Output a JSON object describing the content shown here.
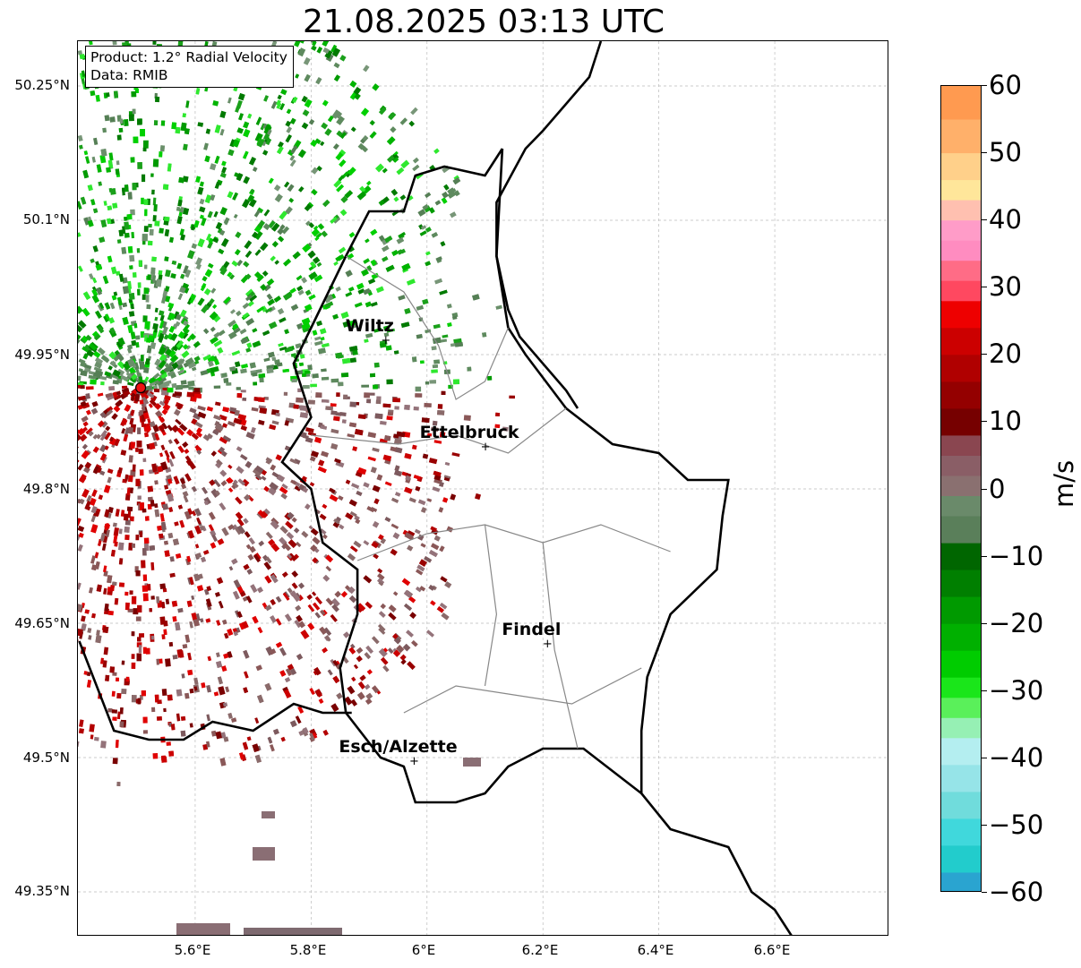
{
  "title": "21.08.2025 03:13 UTC",
  "info_box": {
    "line1": "Product: 1.2° Radial Velocity",
    "line2": "Data: RMIB"
  },
  "latitude_labels": [
    "50.25°N",
    "50.1°N",
    "49.95°N",
    "49.8°N",
    "49.65°N",
    "49.5°N",
    "49.35°N"
  ],
  "longitude_labels": [
    "5.6°E",
    "5.8°E",
    "6°E",
    "6.2°E",
    "6.4°E",
    "6.6°E"
  ],
  "places": [
    {
      "name": "Wiltz",
      "lat": 49.966,
      "lon": 5.932
    },
    {
      "name": "Ettelbruck",
      "lat": 49.847,
      "lon": 6.104
    },
    {
      "name": "Findel",
      "lat": 49.627,
      "lon": 6.211
    },
    {
      "name": "Esch/Alzette",
      "lat": 49.496,
      "lon": 5.981
    }
  ],
  "radar_site": {
    "label": "",
    "lat": 49.913,
    "lon": 5.506
  },
  "colorbar": {
    "label": "m/s",
    "ticks": [
      "60",
      "50",
      "40",
      "30",
      "20",
      "10",
      "0",
      "−10",
      "−20",
      "−30",
      "−40",
      "−50",
      "−60"
    ],
    "range": [
      -60,
      60
    ],
    "colors": {
      "positive_high": "#ff9a50",
      "positive_mid": "#ff6c86",
      "positive_strong": "#e00000",
      "near_zero_pos": "#8a5858",
      "near_zero_neg": "#5e8a5e",
      "negative_mid": "#00c000",
      "negative_low": "#40e0e0",
      "negative_min": "#1f7fc4"
    }
  },
  "map_extent": {
    "lon_min": 5.4,
    "lon_max": 6.8,
    "lat_min": 49.3,
    "lat_max": 50.3
  }
}
